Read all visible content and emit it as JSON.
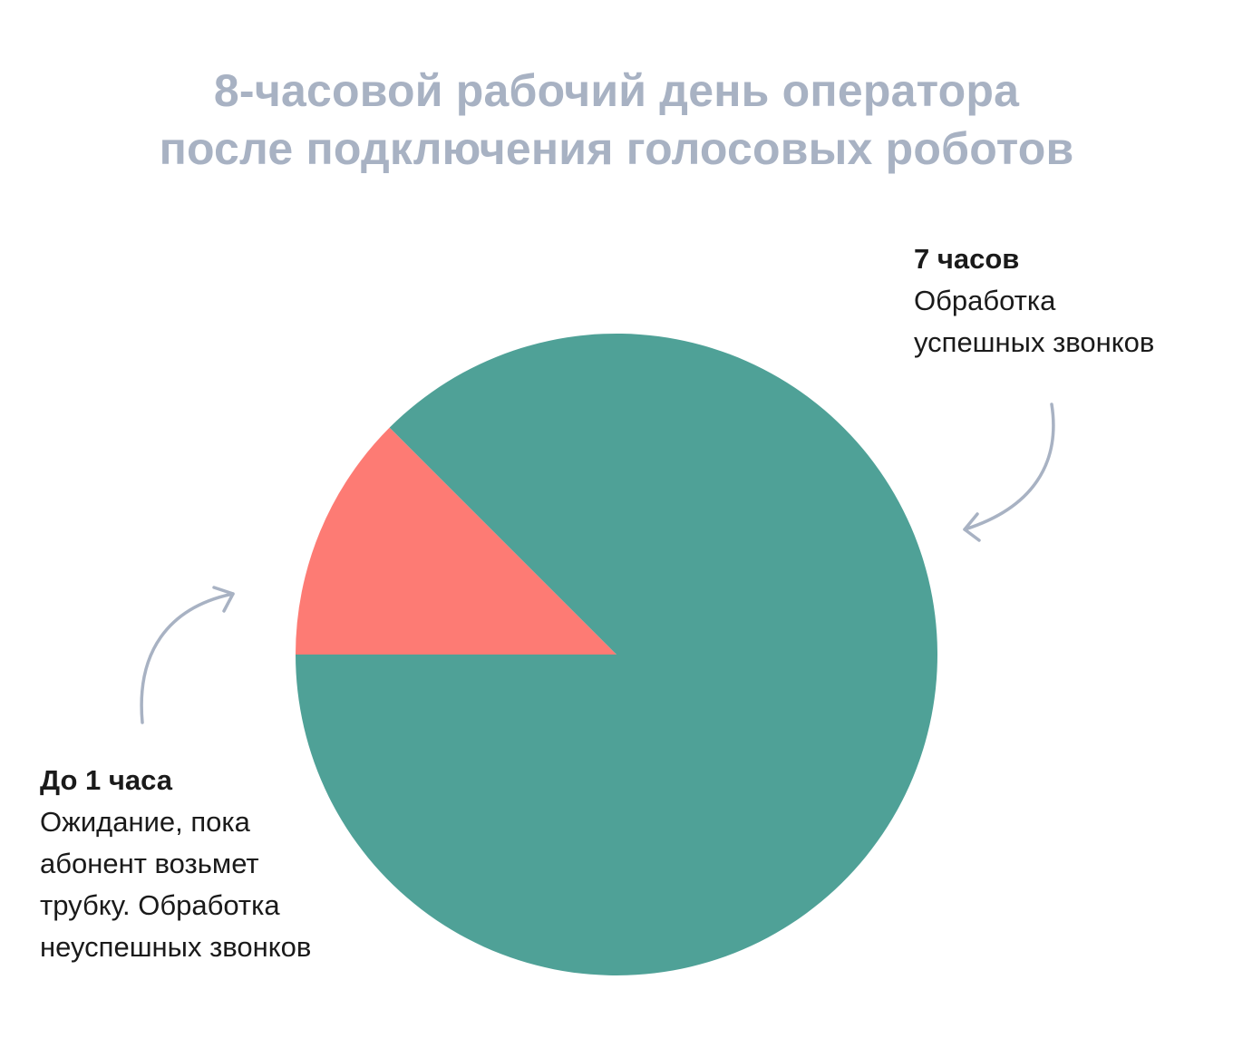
{
  "title_lines": [
    "8-часовой рабочий день оператора",
    "после подключения голосовых роботов"
  ],
  "colors": {
    "title": "#a8b2c3",
    "success_slice": "#4fa197",
    "fail_slice": "#fd7b74",
    "arrow": "#a8b2c3",
    "label_text": "#1a1a1a"
  },
  "chart_data": {
    "type": "pie",
    "title": "8-часовой рабочий день оператора после подключения голосовых роботов",
    "start_angle_deg": 180,
    "direction": "clockwise",
    "slices": [
      {
        "key": "fail",
        "label": "До 1 часа",
        "description": "Ожидание, пока абонент возьмет трубку. Обработка неуспешных звонков",
        "value": 1,
        "color": "#fd7b74"
      },
      {
        "key": "success",
        "label": "7 часов",
        "description": "Обработка успешных звонков",
        "value": 7,
        "color": "#4fa197"
      }
    ]
  },
  "annotations": {
    "right": {
      "head": "7 часов",
      "lines": [
        "Обработка",
        "успешных звонков"
      ]
    },
    "left": {
      "head": "До 1 часа",
      "lines": [
        "Ожидание, пока",
        "абонент возьмет",
        "трубку. Обработка",
        "неуспешных звонков"
      ]
    }
  }
}
